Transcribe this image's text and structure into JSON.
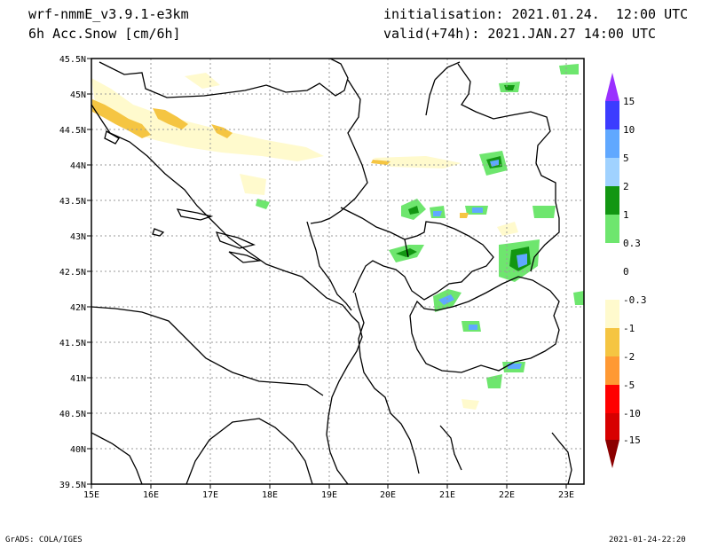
{
  "header": {
    "model": "wrf-nmmE_v3.9.1-e3km",
    "field": "6h Acc.Snow [cm/6h]",
    "init": "initialisation: 2021.01.24.  12:00 UTC",
    "valid": "valid(+74h): 2021.JAN.27 14:00 UTC"
  },
  "axes": {
    "lat_labels": [
      "45.5N",
      "45N",
      "44.5N",
      "44N",
      "43.5N",
      "43N",
      "42.5N",
      "42N",
      "41.5N",
      "41N",
      "40.5N",
      "40N",
      "39.5N"
    ],
    "lon_labels": [
      "15E",
      "16E",
      "17E",
      "18E",
      "19E",
      "20E",
      "21E",
      "22E",
      "23E"
    ]
  },
  "colorbar": {
    "labels": [
      "15",
      "10",
      "5",
      "2",
      "1",
      "0.3",
      "0",
      "-0.3",
      "-1",
      "-2",
      "-5",
      "-10",
      "-15"
    ],
    "colors": [
      "#9a30ff",
      "#3c3cff",
      "#60a8ff",
      "#a0d2ff",
      "#129612",
      "#6ee66e",
      "#ffffff",
      "#fffacd",
      "#f5c542",
      "#ff9933",
      "#ff0000",
      "#d70000",
      "#8b0000",
      "#6b0000"
    ]
  },
  "footer": {
    "left": "GrADS: COLA/IGES",
    "right": "2021-01-24-22:20"
  }
}
